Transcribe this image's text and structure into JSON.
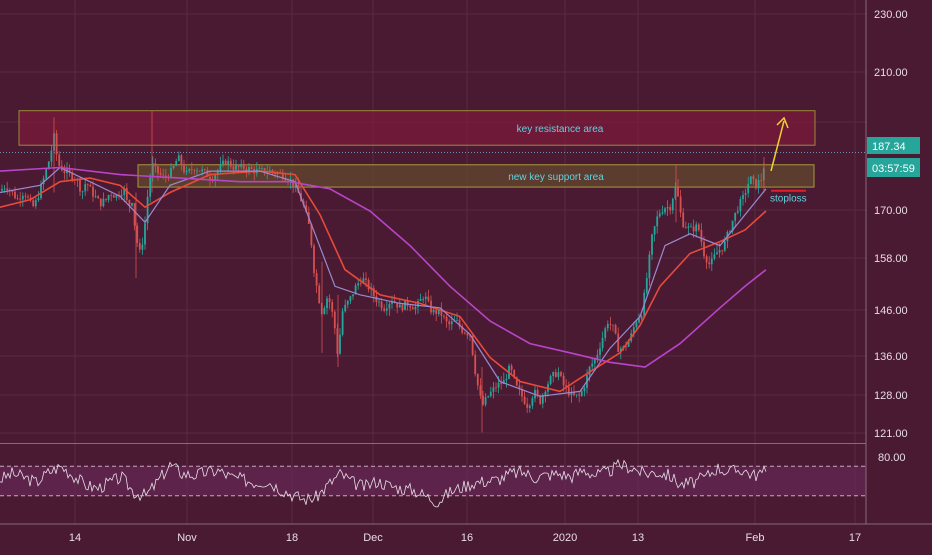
{
  "chart_data": {
    "type": "candlestick",
    "price_axis": {
      "ticks": [
        "230.00",
        "210.00",
        "187.34",
        "170.00",
        "158.00",
        "146.00",
        "136.00",
        "128.00",
        "121.00"
      ],
      "tick_values": [
        230,
        210,
        187.34,
        170,
        158,
        146,
        136,
        128,
        121
      ],
      "scale": "log",
      "range": [
        119,
        240
      ]
    },
    "time_axis": {
      "labels": [
        "14",
        "Nov",
        "18",
        "Dec",
        "16",
        "2020",
        "13",
        "Feb",
        "17"
      ]
    },
    "last_price": {
      "label": "187.34",
      "countdown": "03:57:59",
      "value": 187.34
    },
    "annotations": {
      "resistance_label": "key resistance area",
      "resistance_range": [
        189.5,
        200
      ],
      "support_label": "new key support area",
      "support_range": [
        177.5,
        183.8
      ],
      "stoploss_label": "stoploss",
      "stoploss_value": 176.5
    },
    "price_path": [
      [
        0,
        176.5
      ],
      [
        6,
        178
      ],
      [
        12,
        176
      ],
      [
        18,
        174
      ],
      [
        22,
        176
      ],
      [
        26,
        175.5
      ],
      [
        30,
        173
      ],
      [
        34,
        172
      ],
      [
        38,
        175
      ],
      [
        44,
        180
      ],
      [
        50,
        186
      ],
      [
        54,
        192
      ],
      [
        58,
        184
      ],
      [
        64,
        182
      ],
      [
        70,
        181
      ],
      [
        76,
        180
      ],
      [
        82,
        176
      ],
      [
        86,
        179
      ],
      [
        92,
        176
      ],
      [
        100,
        173
      ],
      [
        106,
        174
      ],
      [
        110,
        176
      ],
      [
        116,
        175
      ],
      [
        124,
        177
      ],
      [
        128,
        172
      ],
      [
        132,
        174
      ],
      [
        136,
        164
      ],
      [
        140,
        160
      ],
      [
        144,
        165
      ],
      [
        148,
        176
      ],
      [
        152,
        184
      ],
      [
        156,
        182
      ],
      [
        164,
        180
      ],
      [
        172,
        182
      ],
      [
        178,
        186
      ],
      [
        186,
        181
      ],
      [
        194,
        183
      ],
      [
        202,
        182
      ],
      [
        212,
        180
      ],
      [
        220,
        183
      ],
      [
        226,
        185
      ],
      [
        234,
        183
      ],
      [
        244,
        183
      ],
      [
        256,
        182
      ],
      [
        270,
        182
      ],
      [
        282,
        181
      ],
      [
        292,
        179
      ],
      [
        298,
        176
      ],
      [
        304,
        172
      ],
      [
        310,
        166
      ],
      [
        314,
        156
      ],
      [
        318,
        150
      ],
      [
        322,
        146
      ],
      [
        328,
        150
      ],
      [
        334,
        144
      ],
      [
        338,
        136
      ],
      [
        342,
        146
      ],
      [
        350,
        149
      ],
      [
        356,
        152
      ],
      [
        362,
        154
      ],
      [
        368,
        152
      ],
      [
        376,
        149
      ],
      [
        384,
        147
      ],
      [
        392,
        149
      ],
      [
        400,
        147
      ],
      [
        408,
        148
      ],
      [
        416,
        147
      ],
      [
        424,
        150
      ],
      [
        432,
        146
      ],
      [
        440,
        146
      ],
      [
        448,
        143
      ],
      [
        456,
        144
      ],
      [
        462,
        142
      ],
      [
        470,
        141
      ],
      [
        476,
        132
      ],
      [
        482,
        126
      ],
      [
        488,
        128
      ],
      [
        496,
        130
      ],
      [
        504,
        131
      ],
      [
        510,
        134
      ],
      [
        516,
        130
      ],
      [
        522,
        128
      ],
      [
        528,
        126
      ],
      [
        534,
        129
      ],
      [
        540,
        127
      ],
      [
        546,
        130
      ],
      [
        552,
        132
      ],
      [
        558,
        133
      ],
      [
        564,
        130
      ],
      [
        572,
        128
      ],
      [
        580,
        128
      ],
      [
        584,
        130
      ],
      [
        590,
        134
      ],
      [
        596,
        136
      ],
      [
        602,
        140
      ],
      [
        608,
        144
      ],
      [
        614,
        142
      ],
      [
        618,
        138
      ],
      [
        624,
        138
      ],
      [
        630,
        140
      ],
      [
        636,
        144
      ],
      [
        642,
        146
      ],
      [
        648,
        156
      ],
      [
        652,
        164
      ],
      [
        658,
        170
      ],
      [
        664,
        172
      ],
      [
        670,
        172
      ],
      [
        676,
        178
      ],
      [
        682,
        168
      ],
      [
        690,
        166
      ],
      [
        698,
        167
      ],
      [
        704,
        160
      ],
      [
        710,
        157
      ],
      [
        716,
        160
      ],
      [
        724,
        162
      ],
      [
        732,
        168
      ],
      [
        738,
        172
      ],
      [
        744,
        175
      ],
      [
        750,
        180
      ],
      [
        756,
        178
      ],
      [
        762,
        180
      ],
      [
        766,
        187.34
      ]
    ],
    "ma_fast": [
      [
        0,
        176
      ],
      [
        40,
        178
      ],
      [
        60,
        183
      ],
      [
        90,
        179
      ],
      [
        120,
        175
      ],
      [
        145,
        168
      ],
      [
        170,
        178
      ],
      [
        210,
        182
      ],
      [
        260,
        182
      ],
      [
        295,
        179
      ],
      [
        315,
        165
      ],
      [
        335,
        152
      ],
      [
        360,
        150
      ],
      [
        400,
        148
      ],
      [
        440,
        147
      ],
      [
        470,
        141
      ],
      [
        500,
        131
      ],
      [
        540,
        128
      ],
      [
        580,
        129
      ],
      [
        610,
        138
      ],
      [
        640,
        145
      ],
      [
        665,
        162
      ],
      [
        690,
        165
      ],
      [
        720,
        162
      ],
      [
        745,
        170
      ],
      [
        766,
        177
      ]
    ],
    "ma_slow": [
      [
        0,
        172
      ],
      [
        30,
        174
      ],
      [
        60,
        179
      ],
      [
        90,
        180
      ],
      [
        120,
        178
      ],
      [
        145,
        172
      ],
      [
        170,
        176
      ],
      [
        210,
        181
      ],
      [
        260,
        182
      ],
      [
        295,
        181
      ],
      [
        320,
        170
      ],
      [
        345,
        156
      ],
      [
        380,
        150
      ],
      [
        420,
        148
      ],
      [
        460,
        145
      ],
      [
        490,
        136
      ],
      [
        520,
        131
      ],
      [
        560,
        129
      ],
      [
        590,
        133
      ],
      [
        620,
        137
      ],
      [
        640,
        143
      ],
      [
        660,
        152
      ],
      [
        690,
        160
      ],
      [
        720,
        163
      ],
      [
        745,
        166
      ],
      [
        766,
        171
      ]
    ],
    "ma_long": [
      [
        0,
        182
      ],
      [
        60,
        183
      ],
      [
        120,
        181
      ],
      [
        180,
        180
      ],
      [
        240,
        179
      ],
      [
        290,
        179
      ],
      [
        330,
        177
      ],
      [
        370,
        171
      ],
      [
        410,
        162
      ],
      [
        450,
        152
      ],
      [
        490,
        144
      ],
      [
        530,
        139
      ],
      [
        570,
        137
      ],
      [
        610,
        135
      ],
      [
        645,
        134
      ],
      [
        680,
        139
      ],
      [
        720,
        147
      ],
      [
        745,
        152
      ],
      [
        766,
        156
      ]
    ],
    "rsi": {
      "label": "80.00",
      "upper_band": 70,
      "lower_band": 30,
      "values": [
        52,
        60,
        55,
        48,
        62,
        70,
        58,
        45,
        40,
        48,
        55,
        35,
        30,
        50,
        72,
        60,
        58,
        62,
        64,
        55,
        52,
        48,
        50,
        40,
        32,
        25,
        28,
        45,
        60,
        48,
        42,
        50,
        44,
        40,
        38,
        30,
        22,
        35,
        42,
        48,
        50,
        52,
        60,
        62,
        55,
        58,
        60,
        56,
        65,
        58,
        62,
        72,
        68,
        60,
        62,
        58,
        45,
        48,
        55,
        68,
        62,
        66,
        58,
        62
      ]
    }
  }
}
